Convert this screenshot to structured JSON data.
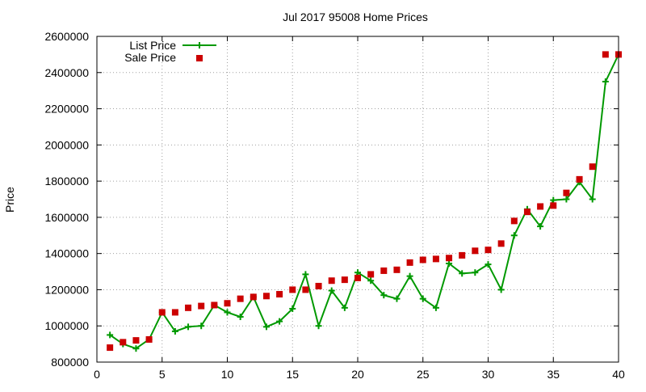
{
  "chart_data": {
    "type": "line",
    "title": "Jul 2017 95008 Home Prices",
    "xlabel": "",
    "ylabel": "Price",
    "xlim": [
      0,
      40
    ],
    "ylim": [
      800000,
      2600000
    ],
    "xticks": [
      0,
      5,
      10,
      15,
      20,
      25,
      30,
      35,
      40
    ],
    "yticks": [
      800000,
      1000000,
      1200000,
      1400000,
      1600000,
      1800000,
      2000000,
      2200000,
      2400000,
      2600000
    ],
    "grid": true,
    "legend_position": "top-left",
    "series": [
      {
        "name": "List Price",
        "style": "line-plus",
        "color": "#009900",
        "x": [
          1,
          2,
          3,
          4,
          5,
          6,
          7,
          8,
          9,
          10,
          11,
          12,
          13,
          14,
          15,
          16,
          17,
          18,
          19,
          20,
          21,
          22,
          23,
          24,
          25,
          26,
          27,
          28,
          29,
          30,
          31,
          32,
          33,
          34,
          35,
          36,
          37,
          38,
          39,
          40
        ],
        "y": [
          950000,
          900000,
          875000,
          925000,
          1075000,
          970000,
          995000,
          1000000,
          1115000,
          1075000,
          1050000,
          1160000,
          995000,
          1025000,
          1095000,
          1285000,
          1000000,
          1195000,
          1100000,
          1295000,
          1250000,
          1170000,
          1150000,
          1275000,
          1150000,
          1100000,
          1345000,
          1290000,
          1295000,
          1340000,
          1200000,
          1500000,
          1645000,
          1550000,
          1695000,
          1700000,
          1795000,
          1700000,
          2350000,
          2500000
        ]
      },
      {
        "name": "Sale Price",
        "style": "square-points",
        "color": "#cc0000",
        "x": [
          1,
          2,
          3,
          4,
          5,
          6,
          7,
          8,
          9,
          10,
          11,
          12,
          13,
          14,
          15,
          16,
          17,
          18,
          19,
          20,
          21,
          22,
          23,
          24,
          25,
          26,
          27,
          28,
          29,
          30,
          31,
          32,
          33,
          34,
          35,
          36,
          37,
          38,
          39,
          40
        ],
        "y": [
          880000,
          910000,
          920000,
          925000,
          1075000,
          1075000,
          1100000,
          1110000,
          1115000,
          1125000,
          1150000,
          1160000,
          1165000,
          1175000,
          1200000,
          1200000,
          1220000,
          1250000,
          1255000,
          1265000,
          1285000,
          1305000,
          1310000,
          1350000,
          1365000,
          1370000,
          1375000,
          1390000,
          1415000,
          1420000,
          1455000,
          1580000,
          1630000,
          1660000,
          1665000,
          1735000,
          1810000,
          1880000,
          2500000,
          2500000
        ]
      }
    ]
  }
}
